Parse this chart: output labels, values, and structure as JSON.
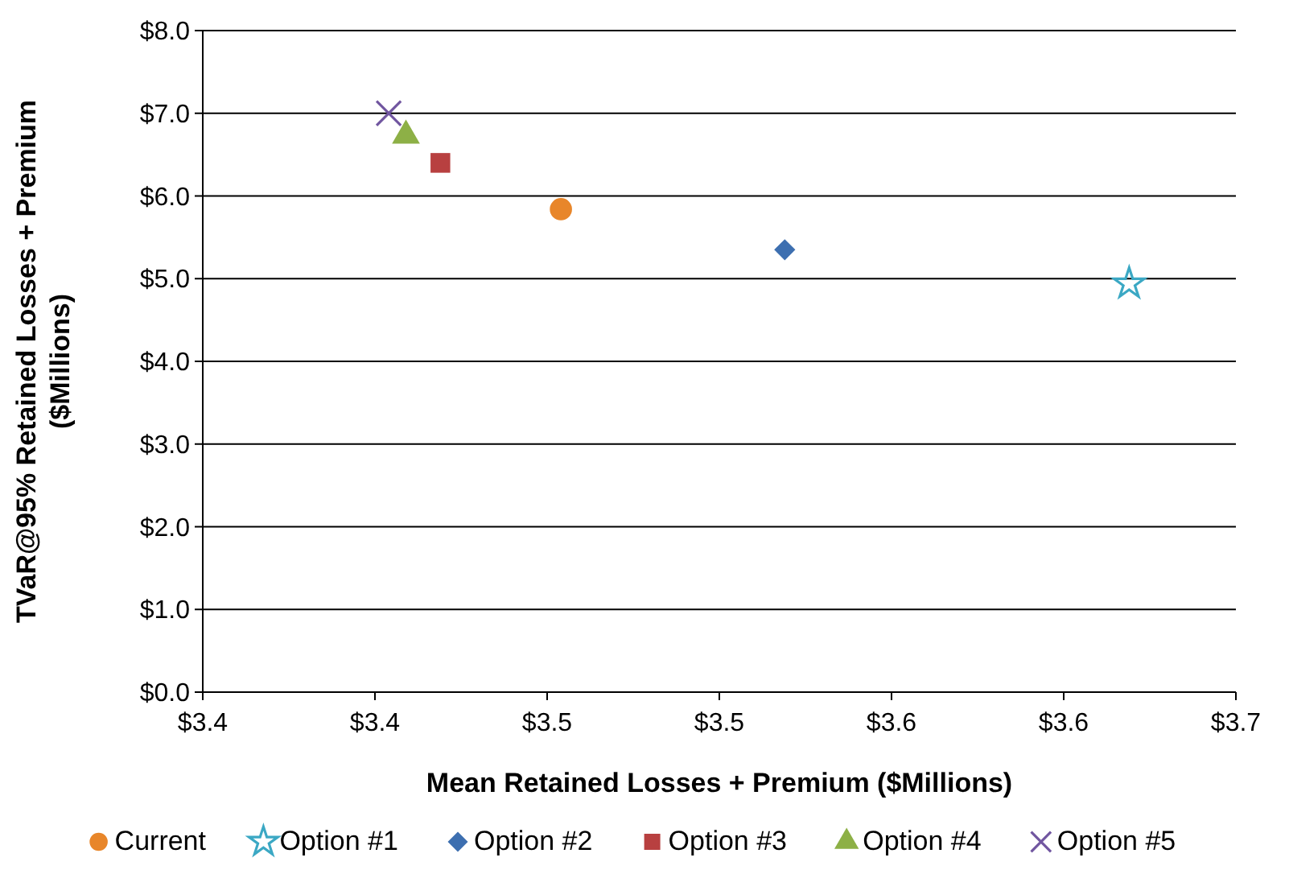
{
  "chart_data": {
    "type": "scatter",
    "xlabel": "Mean Retained Losses + Premium ($Millions)",
    "ylabel": "TVaR@95% Retained Losses + Premium\n($Millions)",
    "xlim": [
      3.35,
      3.65
    ],
    "xticks": [
      {
        "value": 3.35,
        "label": "$3.4"
      },
      {
        "value": 3.4,
        "label": "$3.4"
      },
      {
        "value": 3.45,
        "label": "$3.5"
      },
      {
        "value": 3.5,
        "label": "$3.5"
      },
      {
        "value": 3.55,
        "label": "$3.6"
      },
      {
        "value": 3.6,
        "label": "$3.6"
      },
      {
        "value": 3.65,
        "label": "$3.7"
      }
    ],
    "ylim": [
      0,
      8
    ],
    "yticks": [
      {
        "value": 0,
        "label": "$0.0"
      },
      {
        "value": 1,
        "label": "$1.0"
      },
      {
        "value": 2,
        "label": "$2.0"
      },
      {
        "value": 3,
        "label": "$3.0"
      },
      {
        "value": 4,
        "label": "$4.0"
      },
      {
        "value": 5,
        "label": "$5.0"
      },
      {
        "value": 6,
        "label": "$6.0"
      },
      {
        "value": 7,
        "label": "$7.0"
      },
      {
        "value": 8,
        "label": "$8.0"
      }
    ],
    "grid": "y",
    "legend": "bottom",
    "series": [
      {
        "name": "Current",
        "color": "#e8862a",
        "marker": "circle",
        "x": [
          3.454
        ],
        "values": [
          5.84
        ]
      },
      {
        "name": "Option #1",
        "color": "#3ba8c4",
        "marker": "star",
        "x": [
          3.619
        ],
        "values": [
          4.94
        ]
      },
      {
        "name": "Option #2",
        "color": "#3d6fb0",
        "marker": "diamond",
        "x": [
          3.519
        ],
        "values": [
          5.35
        ]
      },
      {
        "name": "Option #3",
        "color": "#b84040",
        "marker": "square",
        "x": [
          3.419
        ],
        "values": [
          6.4
        ]
      },
      {
        "name": "Option #4",
        "color": "#8db046",
        "marker": "triangle",
        "x": [
          3.409
        ],
        "values": [
          6.73
        ]
      },
      {
        "name": "Option #5",
        "color": "#7156a0",
        "marker": "cross",
        "x": [
          3.404
        ],
        "values": [
          7.0
        ]
      }
    ]
  }
}
